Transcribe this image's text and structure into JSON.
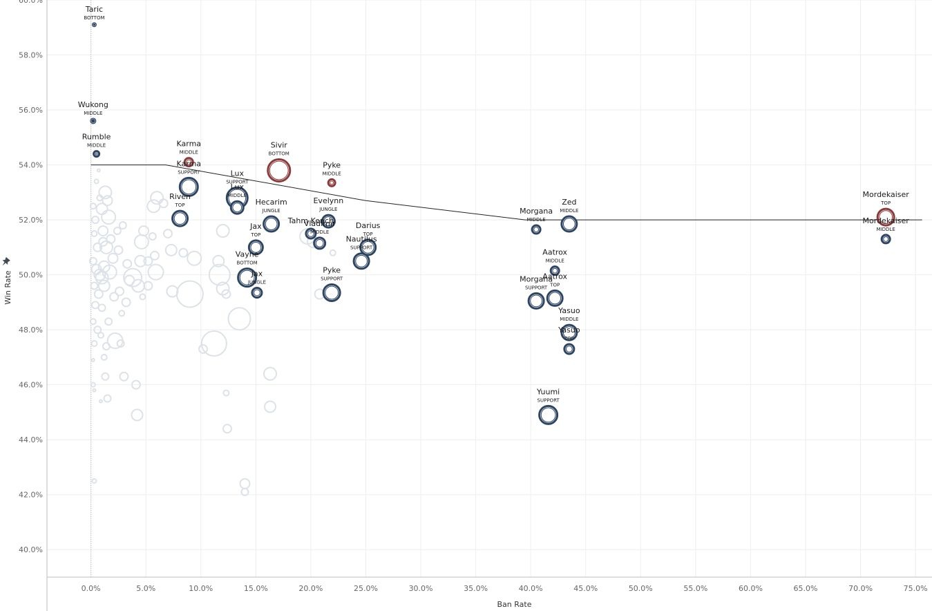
{
  "chart_data": {
    "type": "scatter",
    "xlabel": "Ban Rate",
    "ylabel": "Win Rate",
    "xlim": [
      -4,
      76.5
    ],
    "ylim": [
      39,
      60
    ],
    "x_ticks": [
      0,
      5,
      10,
      15,
      20,
      25,
      30,
      35,
      40,
      45,
      50,
      55,
      60,
      65,
      70,
      75
    ],
    "x_tick_labels": [
      "0.0%",
      "5.0%",
      "10.0%",
      "15.0%",
      "20.0%",
      "25.0%",
      "30.0%",
      "35.0%",
      "40.0%",
      "45.0%",
      "50.0%",
      "55.0%",
      "60.0%",
      "65.0%",
      "70.0%",
      "75.0%"
    ],
    "y_ticks": [
      40,
      42,
      44,
      46,
      48,
      50,
      52,
      54,
      56,
      58,
      60
    ],
    "y_tick_labels": [
      "40.0%",
      "42.0%",
      "44.0%",
      "46.0%",
      "48.0%",
      "50.0%",
      "52.0%",
      "54.0%",
      "56.0%",
      "58.0%",
      "60.0%"
    ],
    "grid": true,
    "colors": {
      "blue": "#2e4561",
      "red": "#8c3b3b",
      "faded": "#dde2e9",
      "line": "#222222"
    },
    "trend_line": [
      [
        0,
        54.0
      ],
      [
        6.8,
        54.0
      ],
      [
        25,
        52.7
      ],
      [
        39.5,
        52.0
      ],
      [
        75.6,
        52.0
      ]
    ],
    "highlighted": [
      {
        "name": "Taric",
        "role": "BOTTOM",
        "x": 0.3,
        "y": 59.1,
        "r": 2,
        "color": "blue"
      },
      {
        "name": "Wukong",
        "role": "MIDDLE",
        "x": 0.2,
        "y": 55.6,
        "r": 3,
        "color": "blue"
      },
      {
        "name": "Rumble",
        "role": "MIDDLE",
        "x": 0.5,
        "y": 54.4,
        "r": 4,
        "color": "blue"
      },
      {
        "name": "Karma",
        "role": "MIDDLE",
        "x": 8.9,
        "y": 54.1,
        "r": 6,
        "color": "red"
      },
      {
        "name": "Karma",
        "role": "SUPPORT",
        "x": 8.9,
        "y": 53.2,
        "r": 13,
        "color": "blue"
      },
      {
        "name": "Sivir",
        "role": "BOTTOM",
        "x": 17.1,
        "y": 53.8,
        "r": 16,
        "color": "red"
      },
      {
        "name": "Pyke",
        "role": "MIDDLE",
        "x": 21.9,
        "y": 53.35,
        "r": 5,
        "color": "red"
      },
      {
        "name": "Lux",
        "role": "SUPPORT",
        "x": 13.3,
        "y": 52.8,
        "r": 15,
        "color": "blue"
      },
      {
        "name": "Lux",
        "role": "MIDDLE",
        "x": 13.3,
        "y": 52.45,
        "r": 9,
        "color": "blue"
      },
      {
        "name": "Riven",
        "role": "TOP",
        "x": 8.1,
        "y": 52.05,
        "r": 11,
        "color": "blue"
      },
      {
        "name": "Hecarim",
        "role": "JUNGLE",
        "x": 16.4,
        "y": 51.85,
        "r": 11,
        "color": "blue"
      },
      {
        "name": "Evelynn",
        "role": "JUNGLE",
        "x": 21.6,
        "y": 51.95,
        "r": 9,
        "color": "blue"
      },
      {
        "name": "Tahm Kench",
        "role": "",
        "x": 20.0,
        "y": 51.5,
        "r": 7,
        "color": "blue"
      },
      {
        "name": "Vladimir",
        "role": "MIDDLE",
        "x": 20.8,
        "y": 51.15,
        "r": 8,
        "color": "blue"
      },
      {
        "name": "Jax",
        "role": "TOP",
        "x": 15.0,
        "y": 51.0,
        "r": 10,
        "color": "blue"
      },
      {
        "name": "Darius",
        "role": "TOP",
        "x": 25.2,
        "y": 51.0,
        "r": 11,
        "color": "blue"
      },
      {
        "name": "Nautilus",
        "role": "SUPPORT",
        "x": 24.6,
        "y": 50.5,
        "r": 11,
        "color": "blue"
      },
      {
        "name": "Vayne",
        "role": "BOTTOM",
        "x": 14.2,
        "y": 49.9,
        "r": 13,
        "color": "blue"
      },
      {
        "name": "Jax",
        "role": "JUNGLE",
        "x": 15.1,
        "y": 49.35,
        "r": 7,
        "color": "blue"
      },
      {
        "name": "Pyke",
        "role": "SUPPORT",
        "x": 21.9,
        "y": 49.35,
        "r": 12,
        "color": "blue"
      },
      {
        "name": "Morgana",
        "role": "MIDDLE",
        "x": 40.5,
        "y": 51.65,
        "r": 6,
        "color": "blue"
      },
      {
        "name": "Zed",
        "role": "MIDDLE",
        "x": 43.5,
        "y": 51.85,
        "r": 11,
        "color": "blue"
      },
      {
        "name": "Aatrox",
        "role": "MIDDLE",
        "x": 42.2,
        "y": 50.15,
        "r": 6,
        "color": "blue"
      },
      {
        "name": "Morgana",
        "role": "SUPPORT",
        "x": 40.5,
        "y": 49.05,
        "r": 11,
        "color": "blue"
      },
      {
        "name": "Aatrox",
        "role": "TOP",
        "x": 42.2,
        "y": 49.15,
        "r": 11,
        "color": "blue"
      },
      {
        "name": "Yasuo",
        "role": "MIDDLE",
        "x": 43.5,
        "y": 47.9,
        "r": 11,
        "color": "blue"
      },
      {
        "name": "Yasuo",
        "role": "TOP",
        "x": 43.5,
        "y": 47.3,
        "r": 7,
        "color": "blue"
      },
      {
        "name": "Yuumi",
        "role": "SUPPORT",
        "x": 41.6,
        "y": 44.9,
        "r": 13,
        "color": "blue"
      },
      {
        "name": "Mordekaiser",
        "role": "TOP",
        "x": 72.3,
        "y": 52.1,
        "r": 12,
        "color": "red"
      },
      {
        "name": "Mordekaiser",
        "role": "MIDDLE",
        "x": 72.3,
        "y": 51.3,
        "r": 6,
        "color": "blue"
      }
    ],
    "faded_points": [
      [
        0.2,
        52.5,
        4
      ],
      [
        0.4,
        52.0,
        5
      ],
      [
        0.3,
        51.5,
        4
      ],
      [
        0.6,
        51.0,
        6
      ],
      [
        0.2,
        50.5,
        5
      ],
      [
        0.5,
        50.2,
        7
      ],
      [
        0.8,
        50.0,
        8
      ],
      [
        0.3,
        49.6,
        5
      ],
      [
        1.0,
        49.9,
        9
      ],
      [
        1.2,
        50.3,
        8
      ],
      [
        0.7,
        49.3,
        6
      ],
      [
        0.4,
        48.9,
        5
      ],
      [
        0.2,
        48.3,
        4
      ],
      [
        0.6,
        48.0,
        5
      ],
      [
        0.3,
        47.5,
        4
      ],
      [
        0.2,
        46.9,
        2
      ],
      [
        0.2,
        46.0,
        3
      ],
      [
        0.3,
        45.8,
        2
      ],
      [
        0.3,
        42.5,
        3
      ],
      [
        1.3,
        53.0,
        9
      ],
      [
        1.5,
        52.7,
        7
      ],
      [
        1.0,
        52.4,
        8
      ],
      [
        1.6,
        52.1,
        10
      ],
      [
        1.1,
        51.6,
        7
      ],
      [
        1.8,
        51.3,
        6
      ],
      [
        1.4,
        51.0,
        9
      ],
      [
        2.0,
        50.6,
        7
      ],
      [
        1.7,
        50.1,
        10
      ],
      [
        1.2,
        49.6,
        8
      ],
      [
        2.1,
        49.2,
        6
      ],
      [
        1.0,
        48.8,
        5
      ],
      [
        1.6,
        48.3,
        5
      ],
      [
        0.9,
        47.8,
        4
      ],
      [
        1.4,
        47.4,
        5
      ],
      [
        1.2,
        47.0,
        4
      ],
      [
        1.3,
        46.3,
        5
      ],
      [
        1.5,
        45.5,
        5
      ],
      [
        0.9,
        45.4,
        2
      ],
      [
        2.6,
        49.4,
        6
      ],
      [
        2.2,
        47.6,
        11
      ],
      [
        3.0,
        46.3,
        6
      ],
      [
        2.7,
        47.5,
        5
      ],
      [
        2.8,
        48.6,
        4
      ],
      [
        3.2,
        49.0,
        6
      ],
      [
        2.5,
        50.9,
        6
      ],
      [
        2.9,
        51.8,
        5
      ],
      [
        3.3,
        50.4,
        6
      ],
      [
        3.5,
        49.8,
        7
      ],
      [
        3.8,
        49.9,
        13
      ],
      [
        4.3,
        49.6,
        9
      ],
      [
        4.7,
        49.2,
        4
      ],
      [
        4.5,
        50.5,
        8
      ],
      [
        4.6,
        51.2,
        10
      ],
      [
        4.8,
        51.6,
        7
      ],
      [
        5.2,
        50.5,
        6
      ],
      [
        5.2,
        49.6,
        6
      ],
      [
        5.9,
        50.1,
        11
      ],
      [
        5.8,
        50.7,
        6
      ],
      [
        5.6,
        51.4,
        5
      ],
      [
        5.7,
        52.5,
        9
      ],
      [
        6.0,
        52.8,
        9
      ],
      [
        6.6,
        52.6,
        6
      ],
      [
        7.0,
        51.5,
        6
      ],
      [
        7.3,
        50.9,
        8
      ],
      [
        7.4,
        49.4,
        8
      ],
      [
        4.1,
        46.0,
        6
      ],
      [
        4.2,
        44.9,
        8
      ],
      [
        8.1,
        52.0,
        7
      ],
      [
        8.4,
        50.8,
        6
      ],
      [
        9.4,
        50.6,
        10
      ],
      [
        9.0,
        49.3,
        19
      ],
      [
        10.2,
        47.3,
        6
      ],
      [
        11.2,
        47.5,
        18
      ],
      [
        11.7,
        50.0,
        15
      ],
      [
        12.0,
        49.5,
        9
      ],
      [
        12.3,
        49.3,
        6
      ],
      [
        11.6,
        50.5,
        8
      ],
      [
        12.0,
        51.6,
        9
      ],
      [
        12.3,
        45.7,
        4
      ],
      [
        12.4,
        44.4,
        6
      ],
      [
        13.5,
        48.4,
        16
      ],
      [
        14.0,
        42.4,
        7
      ],
      [
        14.0,
        42.1,
        5
      ],
      [
        16.3,
        46.4,
        9
      ],
      [
        16.3,
        45.2,
        8
      ],
      [
        19.7,
        51.4,
        11
      ],
      [
        20.2,
        51.2,
        8
      ],
      [
        20.8,
        49.3,
        7
      ],
      [
        22.0,
        50.8,
        4
      ],
      [
        1.1,
        51.2,
        6
      ],
      [
        0.8,
        52.8,
        4
      ],
      [
        0.5,
        53.4,
        3
      ],
      [
        0.7,
        53.8,
        2
      ],
      [
        2.4,
        51.6,
        5
      ]
    ]
  }
}
